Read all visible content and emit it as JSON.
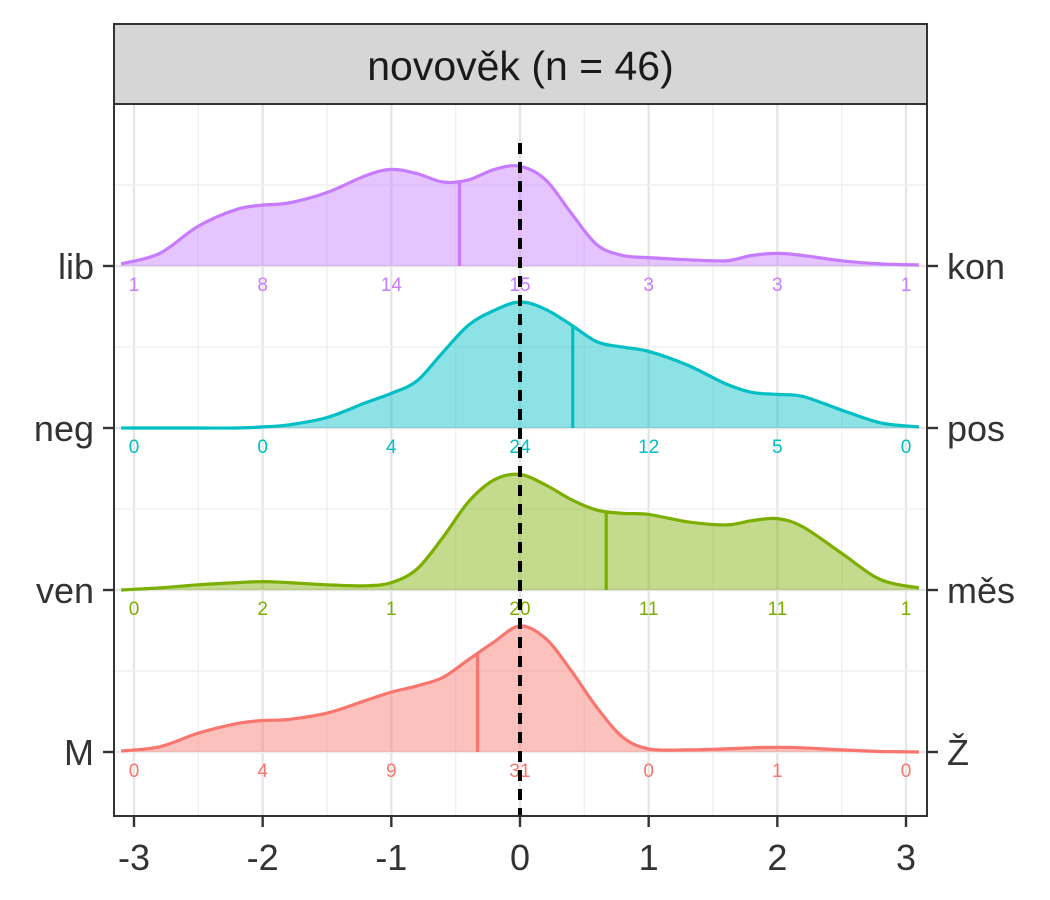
{
  "chart_data": {
    "type": "area",
    "title": "novověk (n = 46)",
    "xlim": [
      -3.1,
      3.1
    ],
    "x_ticks": [
      -3,
      -2,
      -1,
      0,
      1,
      2,
      3
    ],
    "x_tick_labels": [
      "-3",
      "-2",
      "-1",
      "0",
      "1",
      "2",
      "3"
    ],
    "reference_line_x": 0,
    "grid": true,
    "legend": "none",
    "categories": [
      -3,
      -2,
      -1,
      0,
      1,
      2,
      3
    ],
    "series": [
      {
        "left_label": "M",
        "right_label": "Ž",
        "color": "#F8766D",
        "mean": -0.33,
        "counts": [
          0,
          4,
          9,
          31,
          0,
          1,
          0
        ],
        "density_x": [
          -3.1,
          -2.8,
          -2.5,
          -2.2,
          -2.0,
          -1.8,
          -1.5,
          -1.2,
          -1.0,
          -0.8,
          -0.6,
          -0.4,
          -0.2,
          0.0,
          0.2,
          0.4,
          0.6,
          0.8,
          1.0,
          1.3,
          1.6,
          1.8,
          2.0,
          2.2,
          2.5,
          2.8,
          3.1
        ],
        "density_y": [
          0.01,
          0.05,
          0.18,
          0.27,
          0.3,
          0.31,
          0.37,
          0.49,
          0.57,
          0.63,
          0.71,
          0.88,
          1.05,
          1.2,
          1.08,
          0.77,
          0.42,
          0.14,
          0.03,
          0.02,
          0.03,
          0.04,
          0.045,
          0.04,
          0.02,
          0.005,
          0.0
        ]
      },
      {
        "left_label": "ven",
        "right_label": "měs",
        "color": "#7CAE00",
        "mean": 0.67,
        "counts": [
          0,
          2,
          1,
          20,
          11,
          11,
          1
        ],
        "density_x": [
          -3.1,
          -2.8,
          -2.5,
          -2.2,
          -2.0,
          -1.8,
          -1.5,
          -1.2,
          -1.0,
          -0.8,
          -0.6,
          -0.4,
          -0.2,
          0.0,
          0.2,
          0.4,
          0.6,
          0.8,
          1.0,
          1.3,
          1.6,
          1.8,
          2.0,
          2.2,
          2.5,
          2.8,
          3.1
        ],
        "density_y": [
          0.0,
          0.02,
          0.05,
          0.07,
          0.08,
          0.07,
          0.05,
          0.04,
          0.07,
          0.2,
          0.5,
          0.84,
          1.05,
          1.1,
          1.0,
          0.86,
          0.76,
          0.73,
          0.72,
          0.65,
          0.62,
          0.66,
          0.68,
          0.6,
          0.35,
          0.1,
          0.02
        ]
      },
      {
        "left_label": "neg",
        "right_label": "pos",
        "color": "#00BFC4",
        "mean": 0.41,
        "counts": [
          0,
          0,
          4,
          24,
          12,
          5,
          0
        ],
        "density_x": [
          -3.1,
          -2.8,
          -2.5,
          -2.2,
          -2.0,
          -1.8,
          -1.5,
          -1.2,
          -1.0,
          -0.8,
          -0.6,
          -0.4,
          -0.2,
          0.0,
          0.2,
          0.4,
          0.6,
          0.8,
          1.0,
          1.3,
          1.6,
          1.8,
          2.0,
          2.2,
          2.5,
          2.8,
          3.1
        ],
        "density_y": [
          0.0,
          0.0,
          0.0,
          0.0,
          0.01,
          0.03,
          0.1,
          0.24,
          0.33,
          0.45,
          0.72,
          0.98,
          1.12,
          1.2,
          1.13,
          0.98,
          0.82,
          0.77,
          0.73,
          0.6,
          0.42,
          0.34,
          0.32,
          0.3,
          0.17,
          0.05,
          0.01
        ]
      },
      {
        "left_label": "lib",
        "right_label": "kon",
        "color": "#C77CFF",
        "mean": -0.47,
        "counts": [
          1,
          8,
          14,
          15,
          3,
          3,
          1
        ],
        "density_x": [
          -3.1,
          -2.8,
          -2.5,
          -2.2,
          -2.0,
          -1.8,
          -1.5,
          -1.2,
          -1.0,
          -0.8,
          -0.6,
          -0.4,
          -0.2,
          0.0,
          0.2,
          0.4,
          0.6,
          0.8,
          1.0,
          1.3,
          1.6,
          1.8,
          2.0,
          2.2,
          2.5,
          2.8,
          3.1
        ],
        "density_y": [
          0.02,
          0.12,
          0.38,
          0.54,
          0.58,
          0.6,
          0.7,
          0.86,
          0.92,
          0.88,
          0.8,
          0.82,
          0.92,
          0.95,
          0.82,
          0.5,
          0.2,
          0.1,
          0.08,
          0.06,
          0.05,
          0.1,
          0.12,
          0.1,
          0.05,
          0.02,
          0.01
        ]
      }
    ]
  }
}
